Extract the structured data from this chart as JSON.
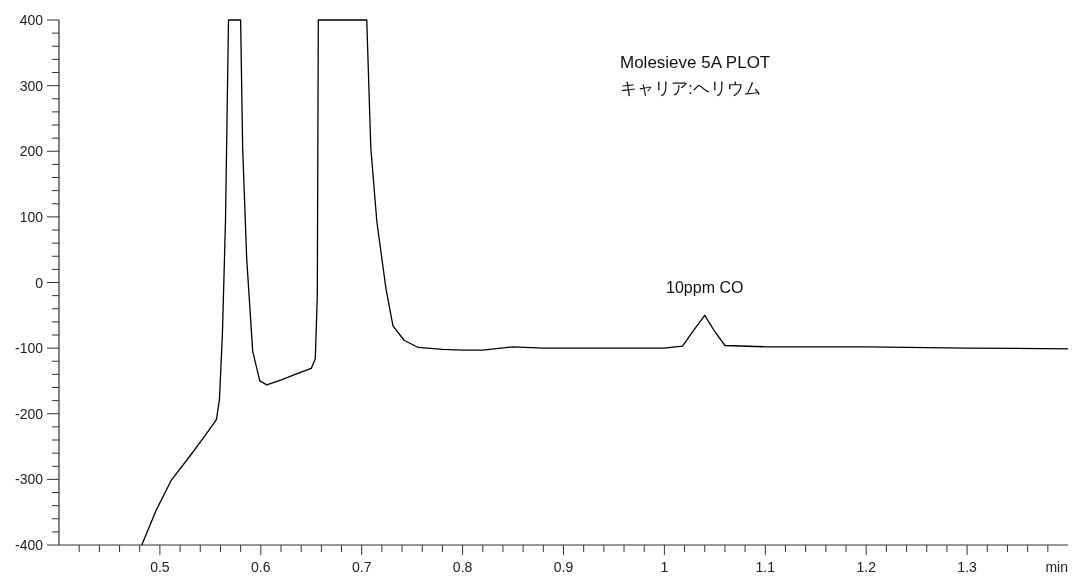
{
  "chart_data": {
    "type": "line",
    "xlabel": "min",
    "annotations": [
      "Molesieve 5A PLOT",
      "キャリア:ヘリウム",
      {
        "text": "10ppm CO",
        "x": 1.04,
        "y": -50
      }
    ],
    "xlim": [
      0.4,
      1.4
    ],
    "ylim": [
      -400,
      400
    ],
    "xticks": [
      {
        "value": 0.42,
        "label": null
      },
      {
        "value": 0.44,
        "label": null
      },
      {
        "value": 0.46,
        "label": null
      },
      {
        "value": 0.48,
        "label": null
      },
      0.5,
      {
        "value": 0.52,
        "label": null
      },
      {
        "value": 0.54,
        "label": null
      },
      {
        "value": 0.56,
        "label": null
      },
      {
        "value": 0.58,
        "label": null
      },
      0.6,
      {
        "value": 0.62,
        "label": null
      },
      {
        "value": 0.64,
        "label": null
      },
      {
        "value": 0.66,
        "label": null
      },
      {
        "value": 0.68,
        "label": null
      },
      0.7,
      {
        "value": 0.72,
        "label": null
      },
      {
        "value": 0.74,
        "label": null
      },
      {
        "value": 0.76,
        "label": null
      },
      {
        "value": 0.78,
        "label": null
      },
      0.8,
      {
        "value": 0.82,
        "label": null
      },
      {
        "value": 0.84,
        "label": null
      },
      {
        "value": 0.86,
        "label": null
      },
      {
        "value": 0.88,
        "label": null
      },
      0.9,
      {
        "value": 0.92,
        "label": null
      },
      {
        "value": 0.94,
        "label": null
      },
      {
        "value": 0.96,
        "label": null
      },
      {
        "value": 0.98,
        "label": null
      },
      1,
      {
        "value": 1.02,
        "label": null
      },
      {
        "value": 1.04,
        "label": null
      },
      {
        "value": 1.06,
        "label": null
      },
      {
        "value": 1.08,
        "label": null
      },
      1.1,
      {
        "value": 1.12,
        "label": null
      },
      {
        "value": 1.14,
        "label": null
      },
      {
        "value": 1.16,
        "label": null
      },
      {
        "value": 1.18,
        "label": null
      },
      1.2,
      {
        "value": 1.22,
        "label": null
      },
      {
        "value": 1.24,
        "label": null
      },
      {
        "value": 1.26,
        "label": null
      },
      {
        "value": 1.28,
        "label": null
      },
      1.3,
      {
        "value": 1.32,
        "label": null
      },
      {
        "value": 1.34,
        "label": null
      },
      {
        "value": 1.36,
        "label": null
      },
      {
        "value": 1.38,
        "label": null
      }
    ],
    "yticks": [
      -400,
      {
        "value": -380,
        "label": null
      },
      {
        "value": -360,
        "label": null
      },
      {
        "value": -340,
        "label": null
      },
      {
        "value": -320,
        "label": null
      },
      -300,
      {
        "value": -280,
        "label": null
      },
      {
        "value": -260,
        "label": null
      },
      {
        "value": -240,
        "label": null
      },
      {
        "value": -220,
        "label": null
      },
      -200,
      {
        "value": -180,
        "label": null
      },
      {
        "value": -160,
        "label": null
      },
      {
        "value": -140,
        "label": null
      },
      {
        "value": -120,
        "label": null
      },
      -100,
      {
        "value": -80,
        "label": null
      },
      {
        "value": -60,
        "label": null
      },
      {
        "value": -40,
        "label": null
      },
      {
        "value": -20,
        "label": null
      },
      0,
      {
        "value": 20,
        "label": null
      },
      {
        "value": 40,
        "label": null
      },
      {
        "value": 60,
        "label": null
      },
      {
        "value": 80,
        "label": null
      },
      100,
      {
        "value": 120,
        "label": null
      },
      {
        "value": 140,
        "label": null
      },
      {
        "value": 160,
        "label": null
      },
      {
        "value": 180,
        "label": null
      },
      200,
      {
        "value": 220,
        "label": null
      },
      {
        "value": 240,
        "label": null
      },
      {
        "value": 260,
        "label": null
      },
      {
        "value": 280,
        "label": null
      },
      300,
      {
        "value": 320,
        "label": null
      },
      {
        "value": 340,
        "label": null
      },
      {
        "value": 360,
        "label": null
      },
      {
        "value": 380,
        "label": null
      },
      400
    ],
    "x": [
      0.482,
      0.496,
      0.511,
      0.53,
      0.544,
      0.556,
      0.559,
      0.562,
      0.565,
      0.568,
      0.58,
      0.582,
      0.586,
      0.592,
      0.599,
      0.606,
      0.621,
      0.636,
      0.65,
      0.654,
      0.656,
      0.657,
      0.705,
      0.709,
      0.715,
      0.724,
      0.731,
      0.742,
      0.756,
      0.78,
      0.8,
      0.82,
      0.85,
      0.88,
      0.95,
      1.0,
      1.018,
      1.028,
      1.04,
      1.05,
      1.06,
      1.1,
      1.2,
      1.3,
      1.4
    ],
    "series": [
      {
        "color": "#000000",
        "values": [
          -400,
          -348,
          -302,
          -264,
          -235,
          -209,
          -179,
          -76,
          93,
          400,
          400,
          206,
          37,
          -105,
          -150,
          -156,
          -148,
          -139,
          -131,
          -116,
          -20,
          400,
          400,
          206,
          93,
          -9,
          -66,
          -88,
          -99,
          -102,
          -103,
          -103,
          -98,
          -100,
          -100,
          -100,
          -97,
          -75,
          -50,
          -75,
          -96,
          -98,
          -98,
          -100,
          -101
        ]
      }
    ]
  }
}
